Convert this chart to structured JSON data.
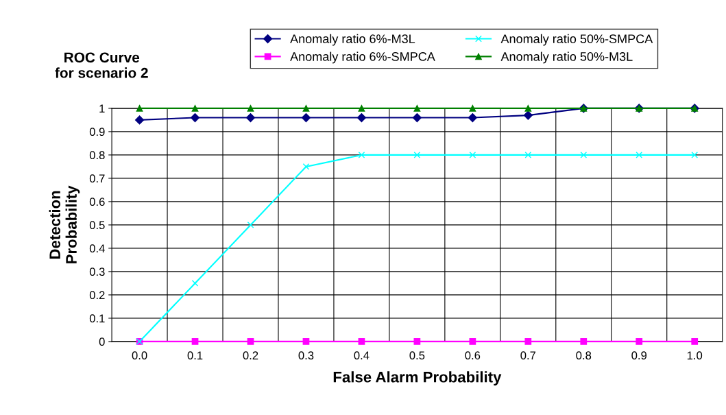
{
  "chart_data": {
    "type": "line",
    "title": "ROC Curve\nfor scenario 2",
    "xlabel": "False Alarm Probability",
    "ylabel": "Detection\nProbability",
    "categories": [
      "0.0",
      "0.1",
      "0.2",
      "0.3",
      "0.4",
      "0.5",
      "0.6",
      "0.7",
      "0.8",
      "0.9",
      "1.0"
    ],
    "series": [
      {
        "name": "Anomaly ratio 6%-M3L",
        "color": "#000080",
        "marker": "diamond",
        "values": [
          0.95,
          0.96,
          0.96,
          0.96,
          0.96,
          0.96,
          0.96,
          0.97,
          1,
          1,
          1
        ]
      },
      {
        "name": "Anomaly ratio 6%-SMPCA",
        "color": "#ff00ff",
        "marker": "square",
        "values": [
          0,
          0,
          0,
          0,
          0,
          0,
          0,
          0,
          0,
          0,
          0
        ]
      },
      {
        "name": "Anomaly ratio 50%-SMPCA",
        "color": "#00ffff",
        "marker": "cross",
        "values": [
          0,
          0.25,
          0.5,
          0.75,
          0.8,
          0.8,
          0.8,
          0.8,
          0.8,
          0.8,
          0.8
        ]
      },
      {
        "name": "Anomaly ratio 50%-M3L",
        "color": "#008000",
        "marker": "triangle",
        "values": [
          1,
          1,
          1,
          1,
          1,
          1,
          1,
          1,
          1,
          1,
          1
        ]
      }
    ],
    "ylim": [
      0,
      1
    ],
    "yticks": [
      0,
      0.1,
      0.2,
      0.3,
      0.4,
      0.5,
      0.6,
      0.7,
      0.8,
      0.9,
      1
    ],
    "grid": true,
    "legend": "top"
  }
}
